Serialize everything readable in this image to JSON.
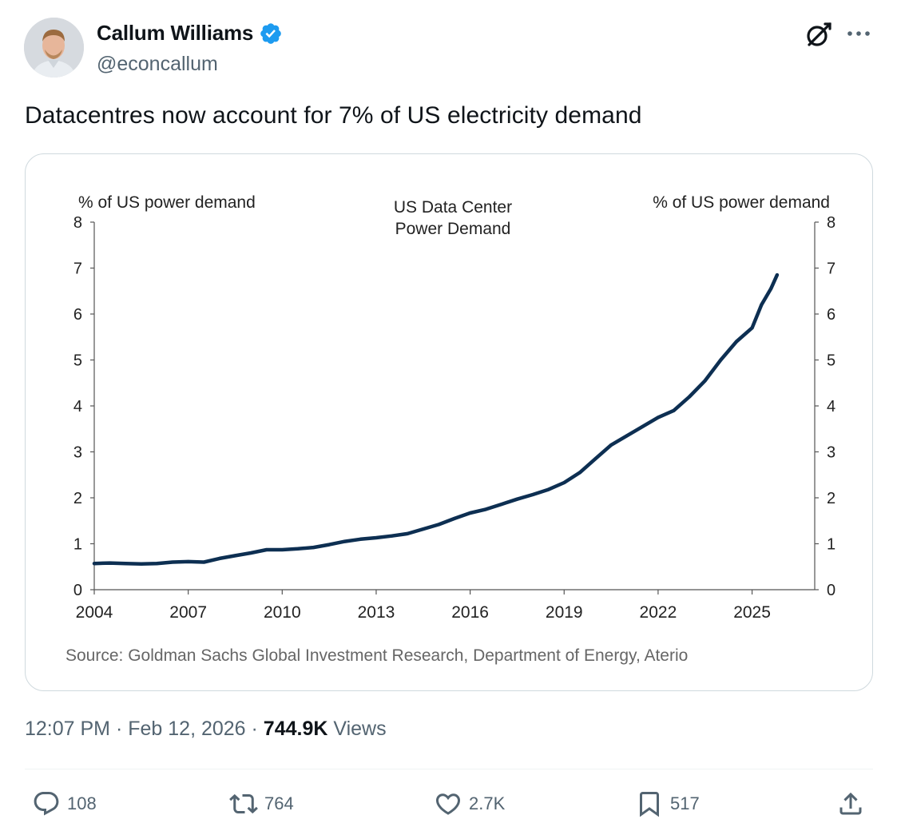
{
  "author": {
    "display_name": "Callum Williams",
    "handle": "@econcallum",
    "verified": true,
    "avatar_icon": "profile-photo"
  },
  "header_icons": {
    "grok": "grok-icon",
    "more": "more-icon"
  },
  "tweet": {
    "text": "Datacentres now account for 7% of US electricity demand",
    "time": "12:07 PM",
    "sep1": " · ",
    "date": "Feb 12, 2026",
    "sep2": " · ",
    "views_count": "744.9K",
    "views_label": " Views"
  },
  "actions": {
    "replies": "108",
    "reposts": "764",
    "likes": "2.7K",
    "bookmarks": "517"
  },
  "colors": {
    "accent": "#1d9bf0",
    "series": "#0d2f52",
    "muted": "#536471"
  },
  "chart_data": {
    "type": "line",
    "title": "US Data Center\nPower Demand",
    "title_lines": [
      "US Data Center",
      "Power Demand"
    ],
    "ylabel_left": "% of US power demand",
    "ylabel_right": "% of US power demand",
    "xlabel": "",
    "xlim": [
      2004,
      2027
    ],
    "ylim": [
      0,
      8
    ],
    "x_ticks": [
      2004,
      2007,
      2010,
      2013,
      2016,
      2019,
      2022,
      2025
    ],
    "y_ticks": [
      0,
      1,
      2,
      3,
      4,
      5,
      6,
      7,
      8
    ],
    "grid": false,
    "source": "Source: Goldman Sachs Global Investment Research, Department of Energy, Aterio",
    "series": [
      {
        "name": "",
        "x": [
          2004.0,
          2004.5,
          2005.0,
          2005.5,
          2006.0,
          2006.5,
          2007.0,
          2007.5,
          2008.0,
          2008.5,
          2009.0,
          2009.5,
          2010.0,
          2010.5,
          2011.0,
          2011.5,
          2012.0,
          2012.5,
          2013.0,
          2013.5,
          2014.0,
          2014.5,
          2015.0,
          2015.5,
          2016.0,
          2016.5,
          2017.0,
          2017.5,
          2018.0,
          2018.5,
          2019.0,
          2019.5,
          2020.0,
          2020.5,
          2021.0,
          2021.5,
          2022.0,
          2022.5,
          2023.0,
          2023.5,
          2024.0,
          2024.5,
          2025.0,
          2025.3,
          2025.6,
          2025.8
        ],
        "y": [
          0.57,
          0.58,
          0.57,
          0.56,
          0.57,
          0.6,
          0.61,
          0.6,
          0.68,
          0.74,
          0.8,
          0.87,
          0.87,
          0.89,
          0.92,
          0.98,
          1.05,
          1.1,
          1.13,
          1.17,
          1.22,
          1.32,
          1.42,
          1.55,
          1.67,
          1.75,
          1.86,
          1.97,
          2.07,
          2.18,
          2.33,
          2.55,
          2.85,
          3.15,
          3.35,
          3.55,
          3.75,
          3.9,
          4.2,
          4.55,
          5.0,
          5.4,
          5.7,
          6.2,
          6.55,
          6.85
        ]
      }
    ]
  }
}
